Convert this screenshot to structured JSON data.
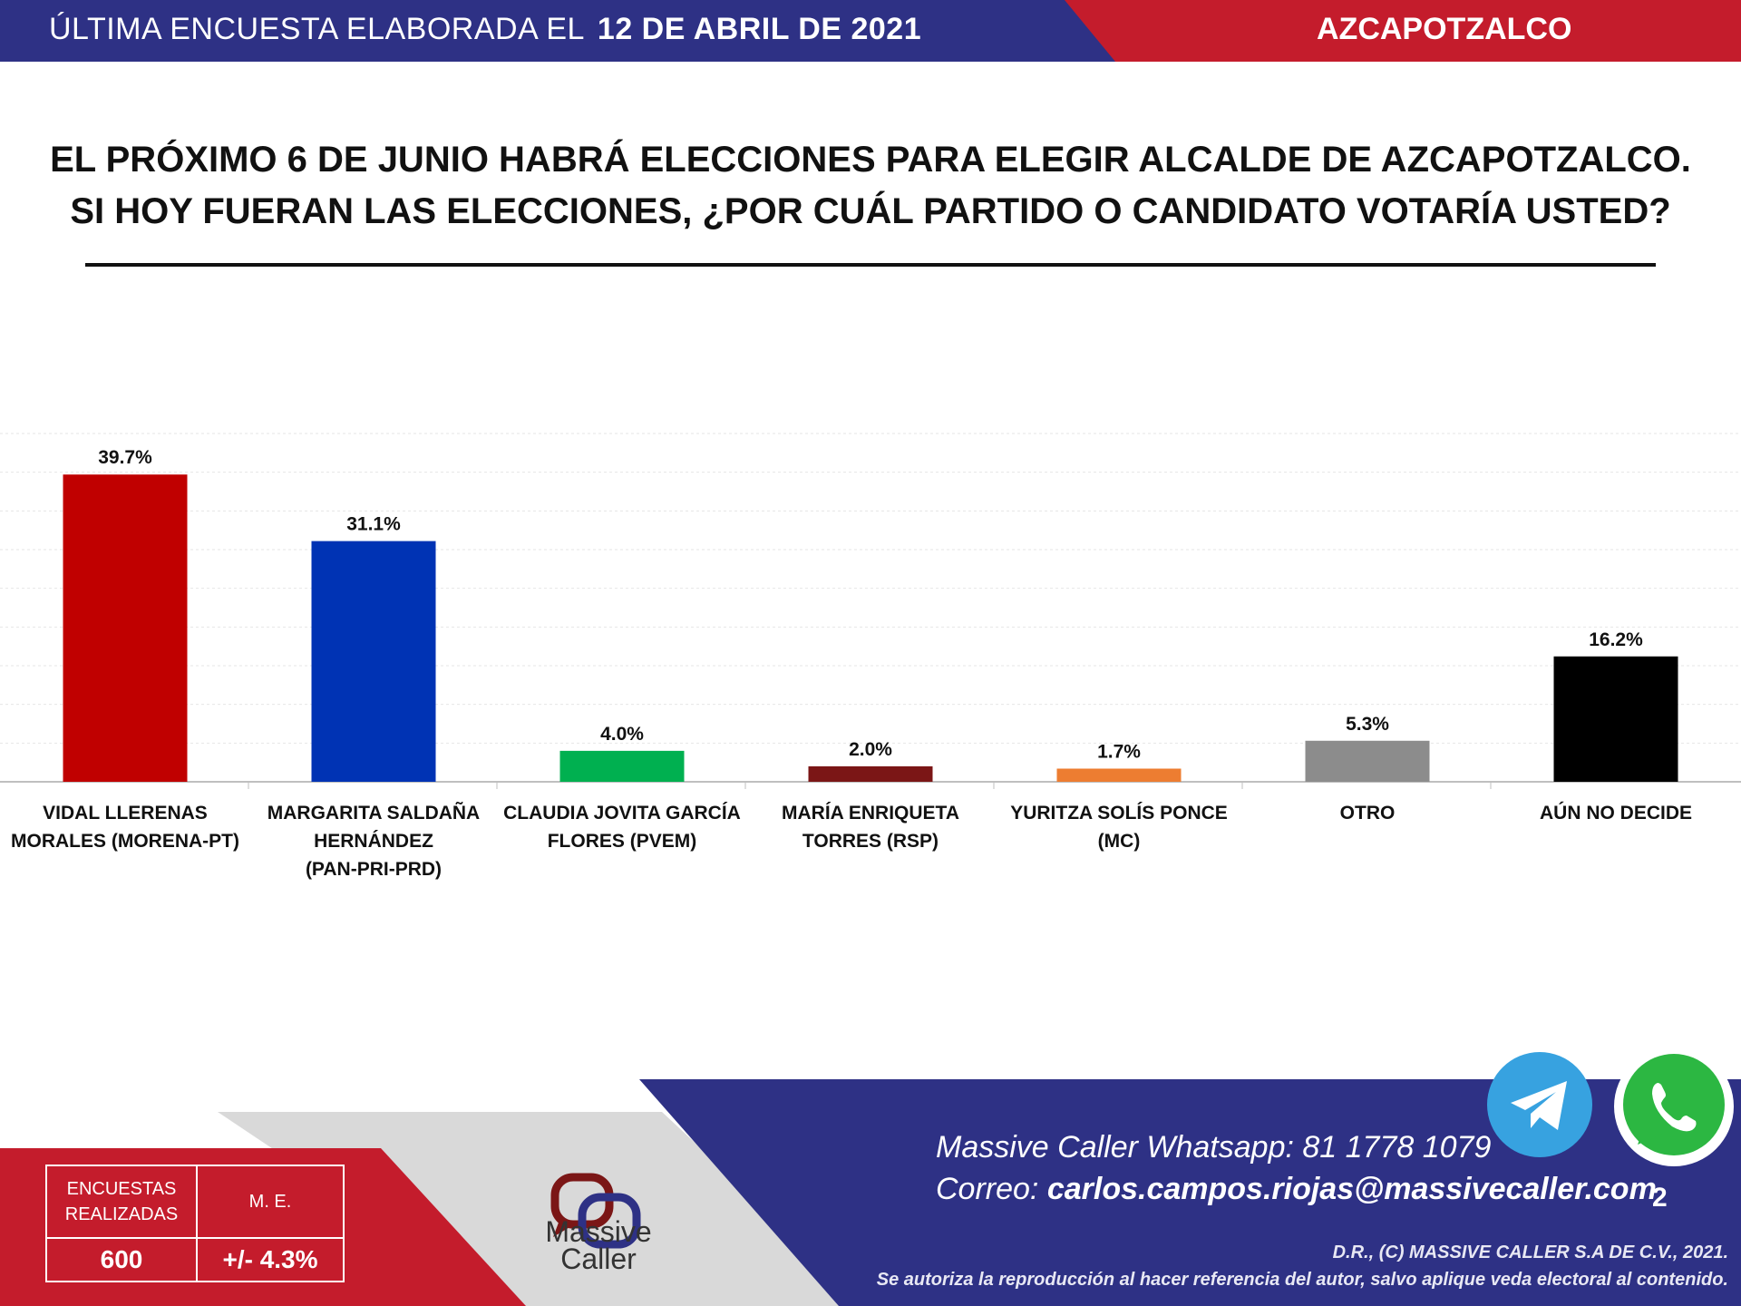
{
  "header": {
    "left_prefix": "ÚLTIMA ENCUESTA ELABORADA EL",
    "left_date": "12 DE ABRIL DE 2021",
    "right_title": "AZCAPOTZALCO"
  },
  "question": {
    "line1": "EL PRÓXIMO 6 DE JUNIO HABRÁ ELECCIONES PARA ELEGIR ALCALDE DE AZCAPOTZALCO.",
    "line2": "SI HOY FUERAN LAS ELECCIONES, ¿POR CUÁL PARTIDO O CANDIDATO VOTARÍA USTED?"
  },
  "chart_data": {
    "type": "bar",
    "categories": [
      [
        "VIDAL LLERENAS",
        "MORALES (MORENA-PT)"
      ],
      [
        "MARGARITA SALDAÑA",
        "HERNÁNDEZ",
        "(PAN-PRI-PRD)"
      ],
      [
        "CLAUDIA JOVITA GARCÍA",
        "FLORES (PVEM)"
      ],
      [
        "MARÍA ENRIQUETA",
        "TORRES (RSP)"
      ],
      [
        "YURITZA SOLÍS PONCE",
        "(MC)"
      ],
      [
        "OTRO"
      ],
      [
        "AÚN NO DECIDE"
      ]
    ],
    "values": [
      39.7,
      31.1,
      4.0,
      2.0,
      1.7,
      5.3,
      16.2
    ],
    "value_labels": [
      "39.7%",
      "31.1%",
      "4.0%",
      "2.0%",
      "1.7%",
      "5.3%",
      "16.2%"
    ],
    "colors": [
      "#c00000",
      "#0033b4",
      "#00b050",
      "#7b1616",
      "#ed7d31",
      "#8c8c8c",
      "#000000"
    ],
    "ylim": [
      0,
      45
    ],
    "grid": true,
    "xlabel": "",
    "ylabel": ""
  },
  "footer": {
    "table": {
      "h1": "ENCUESTAS REALIZADAS",
      "h2": "M. E.",
      "v1": "600",
      "v2": "+/- 4.3%"
    },
    "logo": {
      "line1": "Massive",
      "line2": "Caller"
    },
    "whatsapp_label": "Massive Caller Whatsapp:",
    "whatsapp_number": "81 1778 1079",
    "email_label": "Correo:",
    "email": "carlos.campos.riojas@massivecaller.com",
    "page_number": "2",
    "copyright1": "D.R., (C) MASSIVE CALLER S.A DE C.V., 2021.",
    "copyright2": "Se autoriza la reproducción al hacer referencia del autor, salvo aplique veda electoral al contenido."
  },
  "colors": {
    "navy": "#2e3185",
    "red": "#c41c2c",
    "gray": "#d9d9d9"
  }
}
